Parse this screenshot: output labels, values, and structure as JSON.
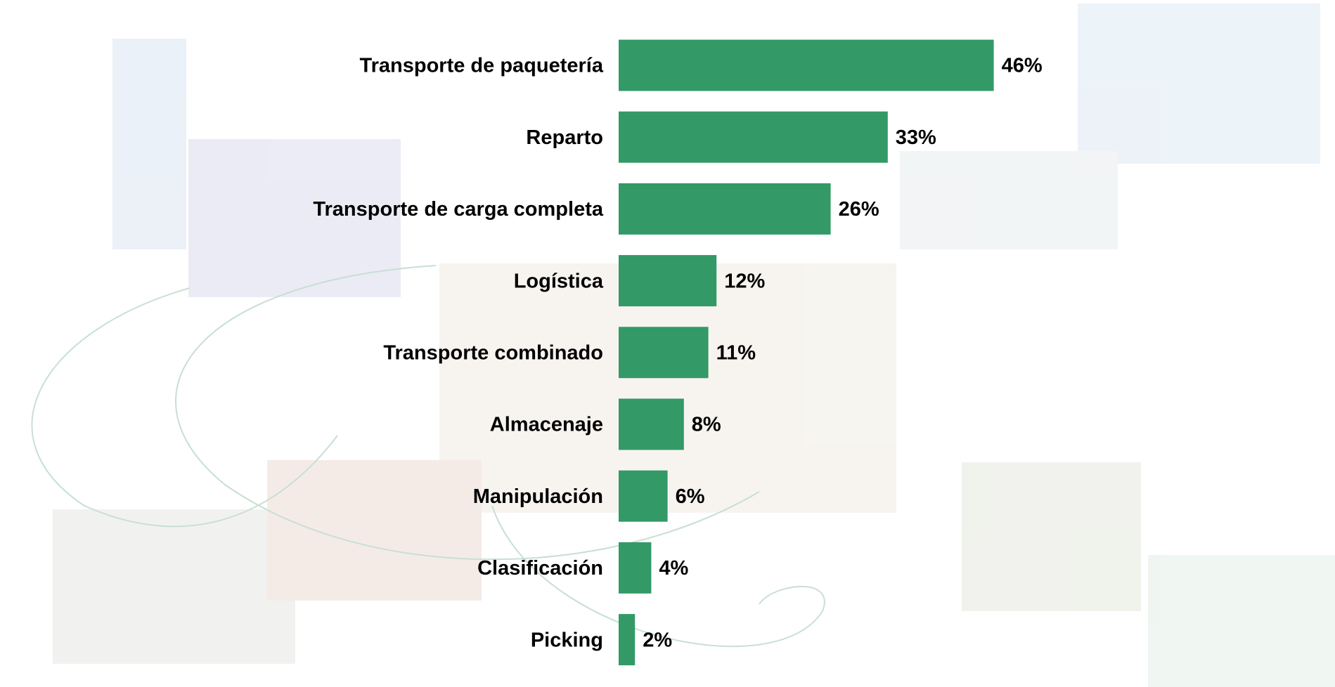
{
  "chart_data": {
    "type": "bar",
    "orientation": "horizontal",
    "categories": [
      "Transporte de paquetería",
      "Reparto",
      "Transporte de carga completa",
      "Logística",
      "Transporte combinado",
      "Almacenaje",
      "Manipulación",
      "Clasificación",
      "Picking"
    ],
    "values": [
      46,
      33,
      26,
      12,
      11,
      8,
      6,
      4,
      2
    ],
    "value_labels": [
      "46%",
      "33%",
      "26%",
      "12%",
      "11%",
      "8%",
      "6%",
      "4%",
      "2%"
    ],
    "color": "#339966"
  }
}
